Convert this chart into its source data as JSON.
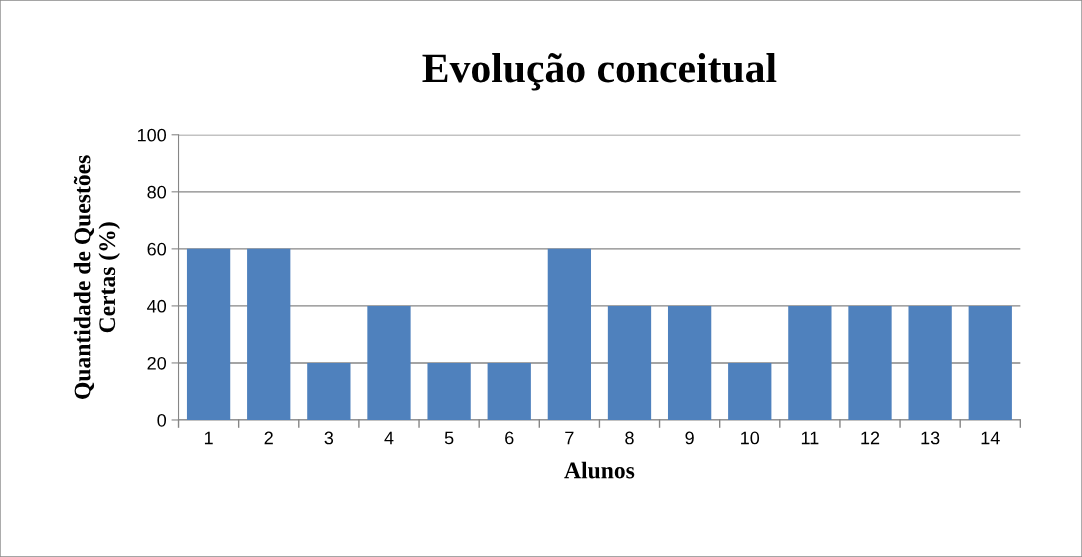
{
  "chart_data": {
    "type": "bar",
    "title": "Evolução conceitual",
    "xlabel": "Alunos",
    "ylabel": "Quantidade de Questões\nCertas (%)",
    "categories": [
      "1",
      "2",
      "3",
      "4",
      "5",
      "6",
      "7",
      "8",
      "9",
      "10",
      "11",
      "12",
      "13",
      "14"
    ],
    "values": [
      60,
      60,
      20,
      40,
      20,
      20,
      60,
      40,
      40,
      20,
      40,
      40,
      40,
      40
    ],
    "color": "#4f81bd",
    "ylim": [
      0,
      100
    ],
    "yticks": [
      0,
      20,
      40,
      60,
      80,
      100
    ],
    "grid": "y",
    "legend": false
  }
}
